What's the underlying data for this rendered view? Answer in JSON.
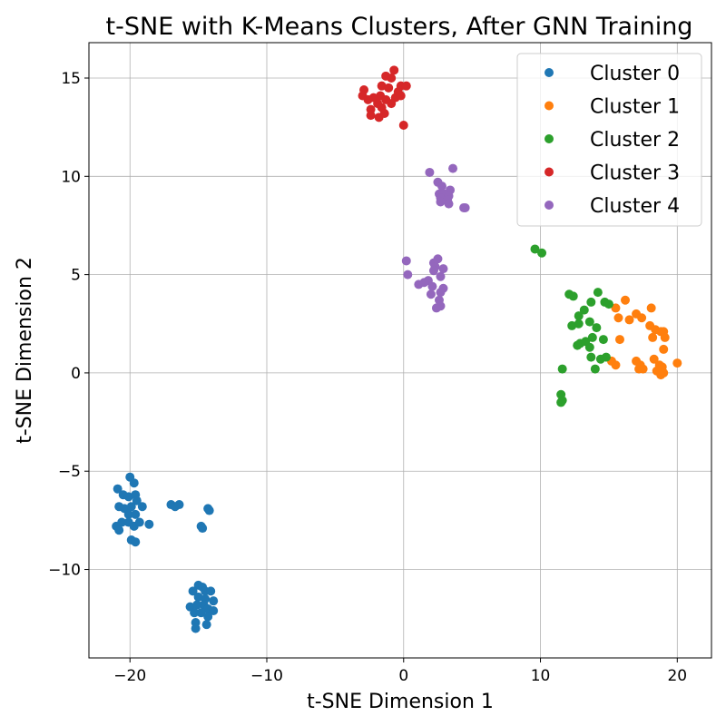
{
  "chart_data": {
    "type": "scatter",
    "title": "t-SNE with K-Means Clusters, After GNN Training",
    "xlabel": "t-SNE Dimension 1",
    "ylabel": "t-SNE Dimension 2",
    "xlim": [
      -23,
      22.5
    ],
    "ylim": [
      -14.5,
      16.8
    ],
    "xticks": [
      -20,
      -10,
      0,
      10,
      20
    ],
    "yticks": [
      -10,
      -5,
      0,
      5,
      10,
      15
    ],
    "xtick_labels": [
      "−20",
      "−10",
      "0",
      "10",
      "20"
    ],
    "ytick_labels": [
      "−10",
      "−5",
      "0",
      "5",
      "10",
      "15"
    ],
    "grid": true,
    "legend_position": "top-right",
    "series": [
      {
        "name": "Cluster 0",
        "color": "#1f77b4",
        "points": [
          [
            -20.0,
            -5.3
          ],
          [
            -19.7,
            -5.6
          ],
          [
            -20.9,
            -5.9
          ],
          [
            -20.5,
            -6.2
          ],
          [
            -20.1,
            -6.3
          ],
          [
            -19.6,
            -6.2
          ],
          [
            -19.5,
            -6.5
          ],
          [
            -19.1,
            -6.8
          ],
          [
            -20.8,
            -6.8
          ],
          [
            -20.4,
            -6.9
          ],
          [
            -19.9,
            -6.8
          ],
          [
            -20.1,
            -7.2
          ],
          [
            -19.6,
            -7.2
          ],
          [
            -21.0,
            -7.8
          ],
          [
            -20.6,
            -7.6
          ],
          [
            -20.1,
            -7.6
          ],
          [
            -19.7,
            -7.8
          ],
          [
            -19.3,
            -7.6
          ],
          [
            -18.6,
            -7.7
          ],
          [
            -20.8,
            -8.0
          ],
          [
            -19.9,
            -8.5
          ],
          [
            -19.6,
            -8.6
          ],
          [
            -17.0,
            -6.7
          ],
          [
            -16.7,
            -6.8
          ],
          [
            -16.4,
            -6.7
          ],
          [
            -14.3,
            -6.9
          ],
          [
            -14.2,
            -7.0
          ],
          [
            -14.8,
            -7.8
          ],
          [
            -14.7,
            -7.9
          ],
          [
            -15.0,
            -10.8
          ],
          [
            -14.7,
            -10.9
          ],
          [
            -15.4,
            -11.1
          ],
          [
            -14.5,
            -11.1
          ],
          [
            -14.1,
            -11.1
          ],
          [
            -15.0,
            -11.4
          ],
          [
            -14.5,
            -11.5
          ],
          [
            -13.9,
            -11.6
          ],
          [
            -15.6,
            -11.9
          ],
          [
            -15.1,
            -11.8
          ],
          [
            -14.6,
            -11.8
          ],
          [
            -14.3,
            -12.0
          ],
          [
            -13.9,
            -12.1
          ],
          [
            -15.3,
            -12.2
          ],
          [
            -14.8,
            -12.2
          ],
          [
            -14.3,
            -12.4
          ],
          [
            -15.2,
            -12.7
          ],
          [
            -14.4,
            -12.8
          ],
          [
            -15.2,
            -13.0
          ]
        ]
      },
      {
        "name": "Cluster 1",
        "color": "#ff7f0e",
        "points": [
          [
            16.2,
            3.7
          ],
          [
            17.0,
            3.0
          ],
          [
            18.1,
            3.3
          ],
          [
            15.5,
            3.3
          ],
          [
            15.7,
            2.8
          ],
          [
            16.5,
            2.7
          ],
          [
            17.4,
            2.8
          ],
          [
            18.0,
            2.4
          ],
          [
            18.4,
            2.2
          ],
          [
            18.8,
            2.1
          ],
          [
            19.0,
            2.1
          ],
          [
            18.2,
            1.8
          ],
          [
            19.1,
            1.8
          ],
          [
            15.8,
            1.7
          ],
          [
            19.0,
            1.2
          ],
          [
            15.2,
            0.6
          ],
          [
            15.5,
            0.4
          ],
          [
            17.0,
            0.6
          ],
          [
            17.3,
            0.4
          ],
          [
            18.3,
            0.7
          ],
          [
            18.7,
            0.4
          ],
          [
            18.9,
            0.3
          ],
          [
            20.0,
            0.5
          ],
          [
            17.2,
            0.2
          ],
          [
            18.5,
            0.1
          ],
          [
            19.0,
            0.0
          ],
          [
            17.5,
            0.2
          ],
          [
            18.8,
            -0.1
          ]
        ]
      },
      {
        "name": "Cluster 2",
        "color": "#2ca02c",
        "points": [
          [
            9.6,
            6.3
          ],
          [
            10.1,
            6.1
          ],
          [
            12.1,
            4.0
          ],
          [
            12.4,
            3.9
          ],
          [
            14.2,
            4.1
          ],
          [
            13.7,
            3.6
          ],
          [
            14.7,
            3.6
          ],
          [
            15.0,
            3.5
          ],
          [
            13.2,
            3.2
          ],
          [
            12.8,
            2.9
          ],
          [
            13.6,
            2.6
          ],
          [
            12.3,
            2.4
          ],
          [
            12.8,
            2.5
          ],
          [
            14.1,
            2.3
          ],
          [
            13.8,
            1.8
          ],
          [
            14.6,
            1.7
          ],
          [
            12.9,
            1.5
          ],
          [
            13.3,
            1.6
          ],
          [
            13.6,
            1.3
          ],
          [
            12.7,
            1.4
          ],
          [
            13.7,
            0.8
          ],
          [
            14.4,
            0.7
          ],
          [
            14.8,
            0.8
          ],
          [
            11.6,
            0.2
          ],
          [
            14.0,
            0.2
          ],
          [
            11.5,
            -1.1
          ],
          [
            11.6,
            -1.4
          ],
          [
            11.5,
            -1.5
          ]
        ]
      },
      {
        "name": "Cluster 3",
        "color": "#d62728",
        "points": [
          [
            -0.7,
            15.4
          ],
          [
            -1.3,
            15.1
          ],
          [
            -0.9,
            15.0
          ],
          [
            -1.6,
            14.6
          ],
          [
            -1.1,
            14.5
          ],
          [
            -0.2,
            14.6
          ],
          [
            0.2,
            14.6
          ],
          [
            -2.9,
            14.4
          ],
          [
            -0.4,
            14.3
          ],
          [
            -3.0,
            14.1
          ],
          [
            -2.2,
            14.0
          ],
          [
            -1.7,
            14.1
          ],
          [
            -1.3,
            13.9
          ],
          [
            -0.6,
            14.0
          ],
          [
            -0.2,
            14.1
          ],
          [
            -2.6,
            13.9
          ],
          [
            -1.9,
            13.7
          ],
          [
            -0.9,
            13.7
          ],
          [
            -1.6,
            13.5
          ],
          [
            -2.4,
            13.4
          ],
          [
            -1.4,
            13.2
          ],
          [
            -2.4,
            13.1
          ],
          [
            -1.8,
            13.0
          ],
          [
            0.0,
            12.6
          ]
        ]
      },
      {
        "name": "Cluster 4",
        "color": "#9467bd",
        "points": [
          [
            3.6,
            10.4
          ],
          [
            1.9,
            10.2
          ],
          [
            2.5,
            9.7
          ],
          [
            2.8,
            9.5
          ],
          [
            3.4,
            9.3
          ],
          [
            2.6,
            9.1
          ],
          [
            3.0,
            9.1
          ],
          [
            3.3,
            9.0
          ],
          [
            2.7,
            8.9
          ],
          [
            3.2,
            8.8
          ],
          [
            2.7,
            8.7
          ],
          [
            3.3,
            8.6
          ],
          [
            4.4,
            8.4
          ],
          [
            4.5,
            8.4
          ],
          [
            0.2,
            5.7
          ],
          [
            2.5,
            5.8
          ],
          [
            2.2,
            5.6
          ],
          [
            2.3,
            5.4
          ],
          [
            2.9,
            5.3
          ],
          [
            2.2,
            5.2
          ],
          [
            0.3,
            5.0
          ],
          [
            2.7,
            4.9
          ],
          [
            1.8,
            4.7
          ],
          [
            1.5,
            4.6
          ],
          [
            1.1,
            4.5
          ],
          [
            2.1,
            4.4
          ],
          [
            2.9,
            4.3
          ],
          [
            2.7,
            4.1
          ],
          [
            2.0,
            4.0
          ],
          [
            2.6,
            3.7
          ],
          [
            2.7,
            3.4
          ],
          [
            2.4,
            3.3
          ]
        ]
      }
    ]
  }
}
